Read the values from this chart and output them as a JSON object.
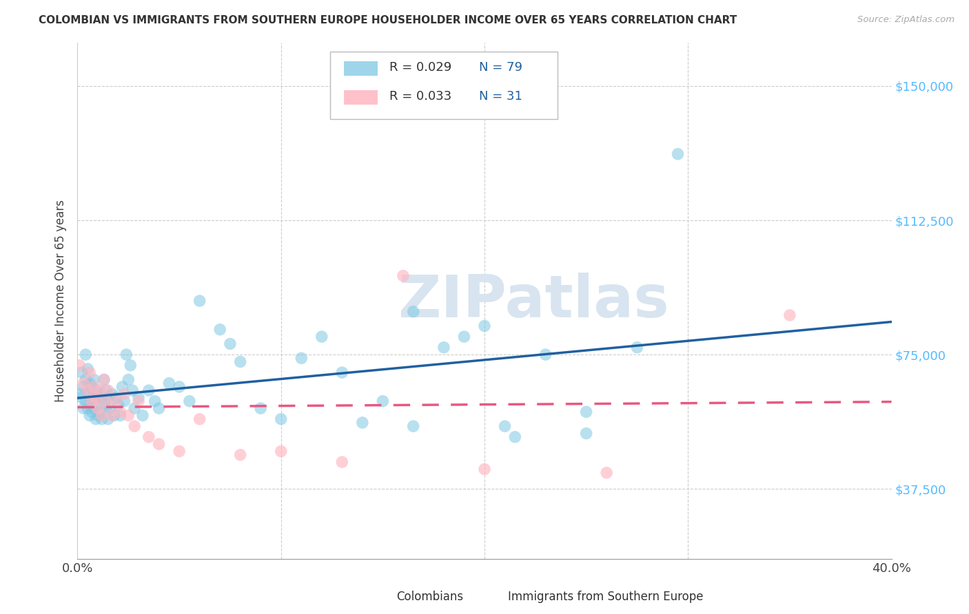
{
  "title": "COLOMBIAN VS IMMIGRANTS FROM SOUTHERN EUROPE HOUSEHOLDER INCOME OVER 65 YEARS CORRELATION CHART",
  "source": "Source: ZipAtlas.com",
  "ylabel": "Householder Income Over 65 years",
  "xlim": [
    0,
    0.4
  ],
  "ylim": [
    18000,
    162000
  ],
  "xtick_vals": [
    0.0,
    0.1,
    0.2,
    0.3,
    0.4
  ],
  "xtick_labels": [
    "0.0%",
    "",
    "",
    "",
    "40.0%"
  ],
  "ytick_vals": [
    37500,
    75000,
    112500,
    150000
  ],
  "ytick_labels": [
    "$37,500",
    "$75,000",
    "$112,500",
    "$150,000"
  ],
  "r1": "0.029",
  "n1": "79",
  "r2": "0.033",
  "n2": "31",
  "label1": "Colombians",
  "label2": "Immigrants from Southern Europe",
  "blue_scatter": "#7ec8e3",
  "pink_scatter": "#ffb6c1",
  "blue_line": "#2060a0",
  "pink_line": "#e85880",
  "tick_color": "#55bbff",
  "watermark": "ZIPatlas",
  "blue_x": [
    0.001,
    0.002,
    0.002,
    0.003,
    0.003,
    0.004,
    0.004,
    0.004,
    0.005,
    0.005,
    0.005,
    0.006,
    0.006,
    0.006,
    0.007,
    0.007,
    0.007,
    0.008,
    0.008,
    0.008,
    0.009,
    0.009,
    0.01,
    0.01,
    0.01,
    0.011,
    0.011,
    0.012,
    0.012,
    0.013,
    0.013,
    0.014,
    0.014,
    0.015,
    0.015,
    0.016,
    0.017,
    0.018,
    0.019,
    0.02,
    0.021,
    0.022,
    0.023,
    0.024,
    0.025,
    0.026,
    0.027,
    0.028,
    0.03,
    0.032,
    0.035,
    0.038,
    0.04,
    0.045,
    0.05,
    0.055,
    0.06,
    0.07,
    0.075,
    0.08,
    0.09,
    0.1,
    0.11,
    0.12,
    0.13,
    0.14,
    0.15,
    0.165,
    0.18,
    0.2,
    0.215,
    0.23,
    0.25,
    0.275,
    0.165,
    0.19,
    0.21,
    0.295,
    0.25
  ],
  "blue_y": [
    64000,
    70000,
    63000,
    66000,
    60000,
    68000,
    62000,
    75000,
    65000,
    71000,
    60000,
    63000,
    67000,
    58000,
    62000,
    66000,
    59000,
    64000,
    60000,
    68000,
    57000,
    63000,
    65000,
    61000,
    58000,
    64000,
    59000,
    63000,
    57000,
    68000,
    62000,
    65000,
    60000,
    63000,
    57000,
    60000,
    64000,
    58000,
    63000,
    61000,
    58000,
    66000,
    62000,
    75000,
    68000,
    72000,
    65000,
    60000,
    63000,
    58000,
    65000,
    62000,
    60000,
    67000,
    66000,
    62000,
    90000,
    82000,
    78000,
    73000,
    60000,
    57000,
    74000,
    80000,
    70000,
    56000,
    62000,
    87000,
    77000,
    83000,
    52000,
    75000,
    59000,
    77000,
    55000,
    80000,
    55000,
    131000,
    53000
  ],
  "pink_x": [
    0.001,
    0.003,
    0.005,
    0.006,
    0.007,
    0.008,
    0.009,
    0.01,
    0.011,
    0.012,
    0.013,
    0.014,
    0.015,
    0.017,
    0.019,
    0.021,
    0.023,
    0.025,
    0.028,
    0.03,
    0.035,
    0.04,
    0.05,
    0.06,
    0.08,
    0.1,
    0.13,
    0.16,
    0.2,
    0.26,
    0.35
  ],
  "pink_y": [
    72000,
    67000,
    65000,
    70000,
    62000,
    66000,
    63000,
    60000,
    65000,
    58000,
    68000,
    62000,
    65000,
    58000,
    62000,
    59000,
    64000,
    58000,
    55000,
    62000,
    52000,
    50000,
    48000,
    57000,
    47000,
    48000,
    45000,
    97000,
    43000,
    42000,
    86000
  ]
}
